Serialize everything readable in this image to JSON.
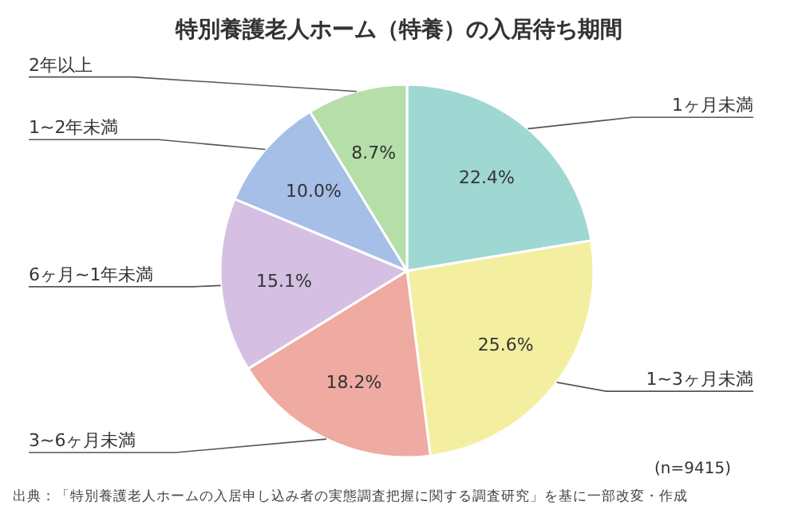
{
  "chart_data": {
    "type": "pie",
    "title": "特別養護老人ホーム（特養）の入居待ち期間",
    "categories": [
      "1ヶ月未満",
      "1~3ヶ月未満",
      "3~6ヶ月未満",
      "6ヶ月~1年未満",
      "1~2年未満",
      "2年以上"
    ],
    "values": [
      22.4,
      25.6,
      18.2,
      15.1,
      10.0,
      8.7
    ],
    "value_labels": [
      "22.4%",
      "25.6%",
      "18.2%",
      "15.1%",
      "10.0%",
      "8.7%"
    ],
    "colors": [
      "#9fd7d2",
      "#f4efa0",
      "#efaaa1",
      "#d5c0e4",
      "#a6bfe7",
      "#b5dea9"
    ],
    "annotations": [
      "(n=9415)",
      "出典：「特別養護老人ホームの入居申し込み者の実態調査把握に関する調査研究」を基に一部改変・作成"
    ]
  }
}
